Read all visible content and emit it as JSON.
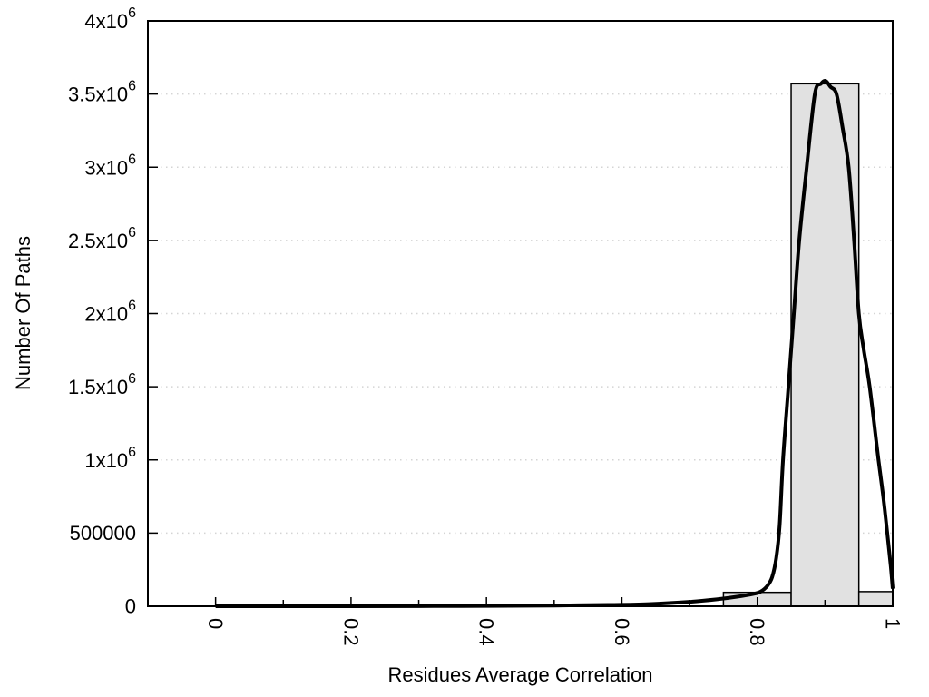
{
  "figure": {
    "background": "#ffffff",
    "frame_color": "#000000"
  },
  "chart_data": {
    "type": "bar",
    "subtype": "histogram-with-fit-curve",
    "title": "",
    "xlabel": "Residues Average Correlation",
    "ylabel": "Number Of Paths",
    "xlim": [
      -0.1,
      1.0
    ],
    "ylim": [
      0,
      4000000
    ],
    "grid": {
      "y": true,
      "x": false,
      "style": "dotted",
      "color": "#d4d4d4"
    },
    "legend": "none",
    "x_tick_label_rotation": 90,
    "x_major_ticks": [
      {
        "value": 0.0,
        "label": "0"
      },
      {
        "value": 0.2,
        "label": "0.2"
      },
      {
        "value": 0.4,
        "label": "0.4"
      },
      {
        "value": 0.6,
        "label": "0.6"
      },
      {
        "value": 0.8,
        "label": "0.8"
      },
      {
        "value": 1.0,
        "label": "1"
      }
    ],
    "x_minor_ticks": [
      0.1,
      0.3,
      0.5,
      0.7,
      0.9
    ],
    "y_ticks": [
      {
        "value": 0,
        "label": "0"
      },
      {
        "value": 500000,
        "label": "500000"
      },
      {
        "value": 1000000,
        "label": "1x10^6"
      },
      {
        "value": 1500000,
        "label": "1.5x10^6"
      },
      {
        "value": 2000000,
        "label": "2x10^6"
      },
      {
        "value": 2500000,
        "label": "2.5x10^6"
      },
      {
        "value": 3000000,
        "label": "3x10^6"
      },
      {
        "value": 3500000,
        "label": "3.5x10^6"
      },
      {
        "value": 4000000,
        "label": "4x10^6"
      }
    ],
    "bar_fill": "#e1e1e1",
    "bar_stroke": "#000000",
    "bars": [
      {
        "x0": 0.75,
        "x1": 0.85,
        "count": 95000
      },
      {
        "x0": 0.85,
        "x1": 0.95,
        "count": 3570000
      },
      {
        "x0": 0.95,
        "x1": 1.0,
        "count": 100000
      }
    ],
    "curve": {
      "name": "fit-curve",
      "color": "#000000",
      "stroke_width": 4,
      "points": [
        [
          0.0,
          0
        ],
        [
          0.1,
          0
        ],
        [
          0.2,
          0
        ],
        [
          0.3,
          1000
        ],
        [
          0.4,
          2500
        ],
        [
          0.5,
          5000
        ],
        [
          0.58,
          9000
        ],
        [
          0.64,
          15000
        ],
        [
          0.7,
          30000
        ],
        [
          0.74,
          47000
        ],
        [
          0.77,
          65000
        ],
        [
          0.795,
          85000
        ],
        [
          0.805,
          100000
        ],
        [
          0.815,
          140000
        ],
        [
          0.822,
          200000
        ],
        [
          0.828,
          330000
        ],
        [
          0.833,
          550000
        ],
        [
          0.838,
          1000000
        ],
        [
          0.846,
          1500000
        ],
        [
          0.854,
          2000000
        ],
        [
          0.862,
          2500000
        ],
        [
          0.873,
          3000000
        ],
        [
          0.885,
          3500000
        ],
        [
          0.894,
          3570000
        ],
        [
          0.901,
          3590000
        ],
        [
          0.908,
          3550000
        ],
        [
          0.917,
          3500000
        ],
        [
          0.926,
          3270000
        ],
        [
          0.935,
          3000000
        ],
        [
          0.943,
          2500000
        ],
        [
          0.95,
          2000000
        ],
        [
          0.957,
          1760000
        ],
        [
          0.966,
          1500000
        ],
        [
          0.979,
          1000000
        ],
        [
          0.986,
          750000
        ],
        [
          0.992,
          500000
        ],
        [
          0.997,
          280000
        ],
        [
          1.0,
          120000
        ]
      ]
    }
  }
}
